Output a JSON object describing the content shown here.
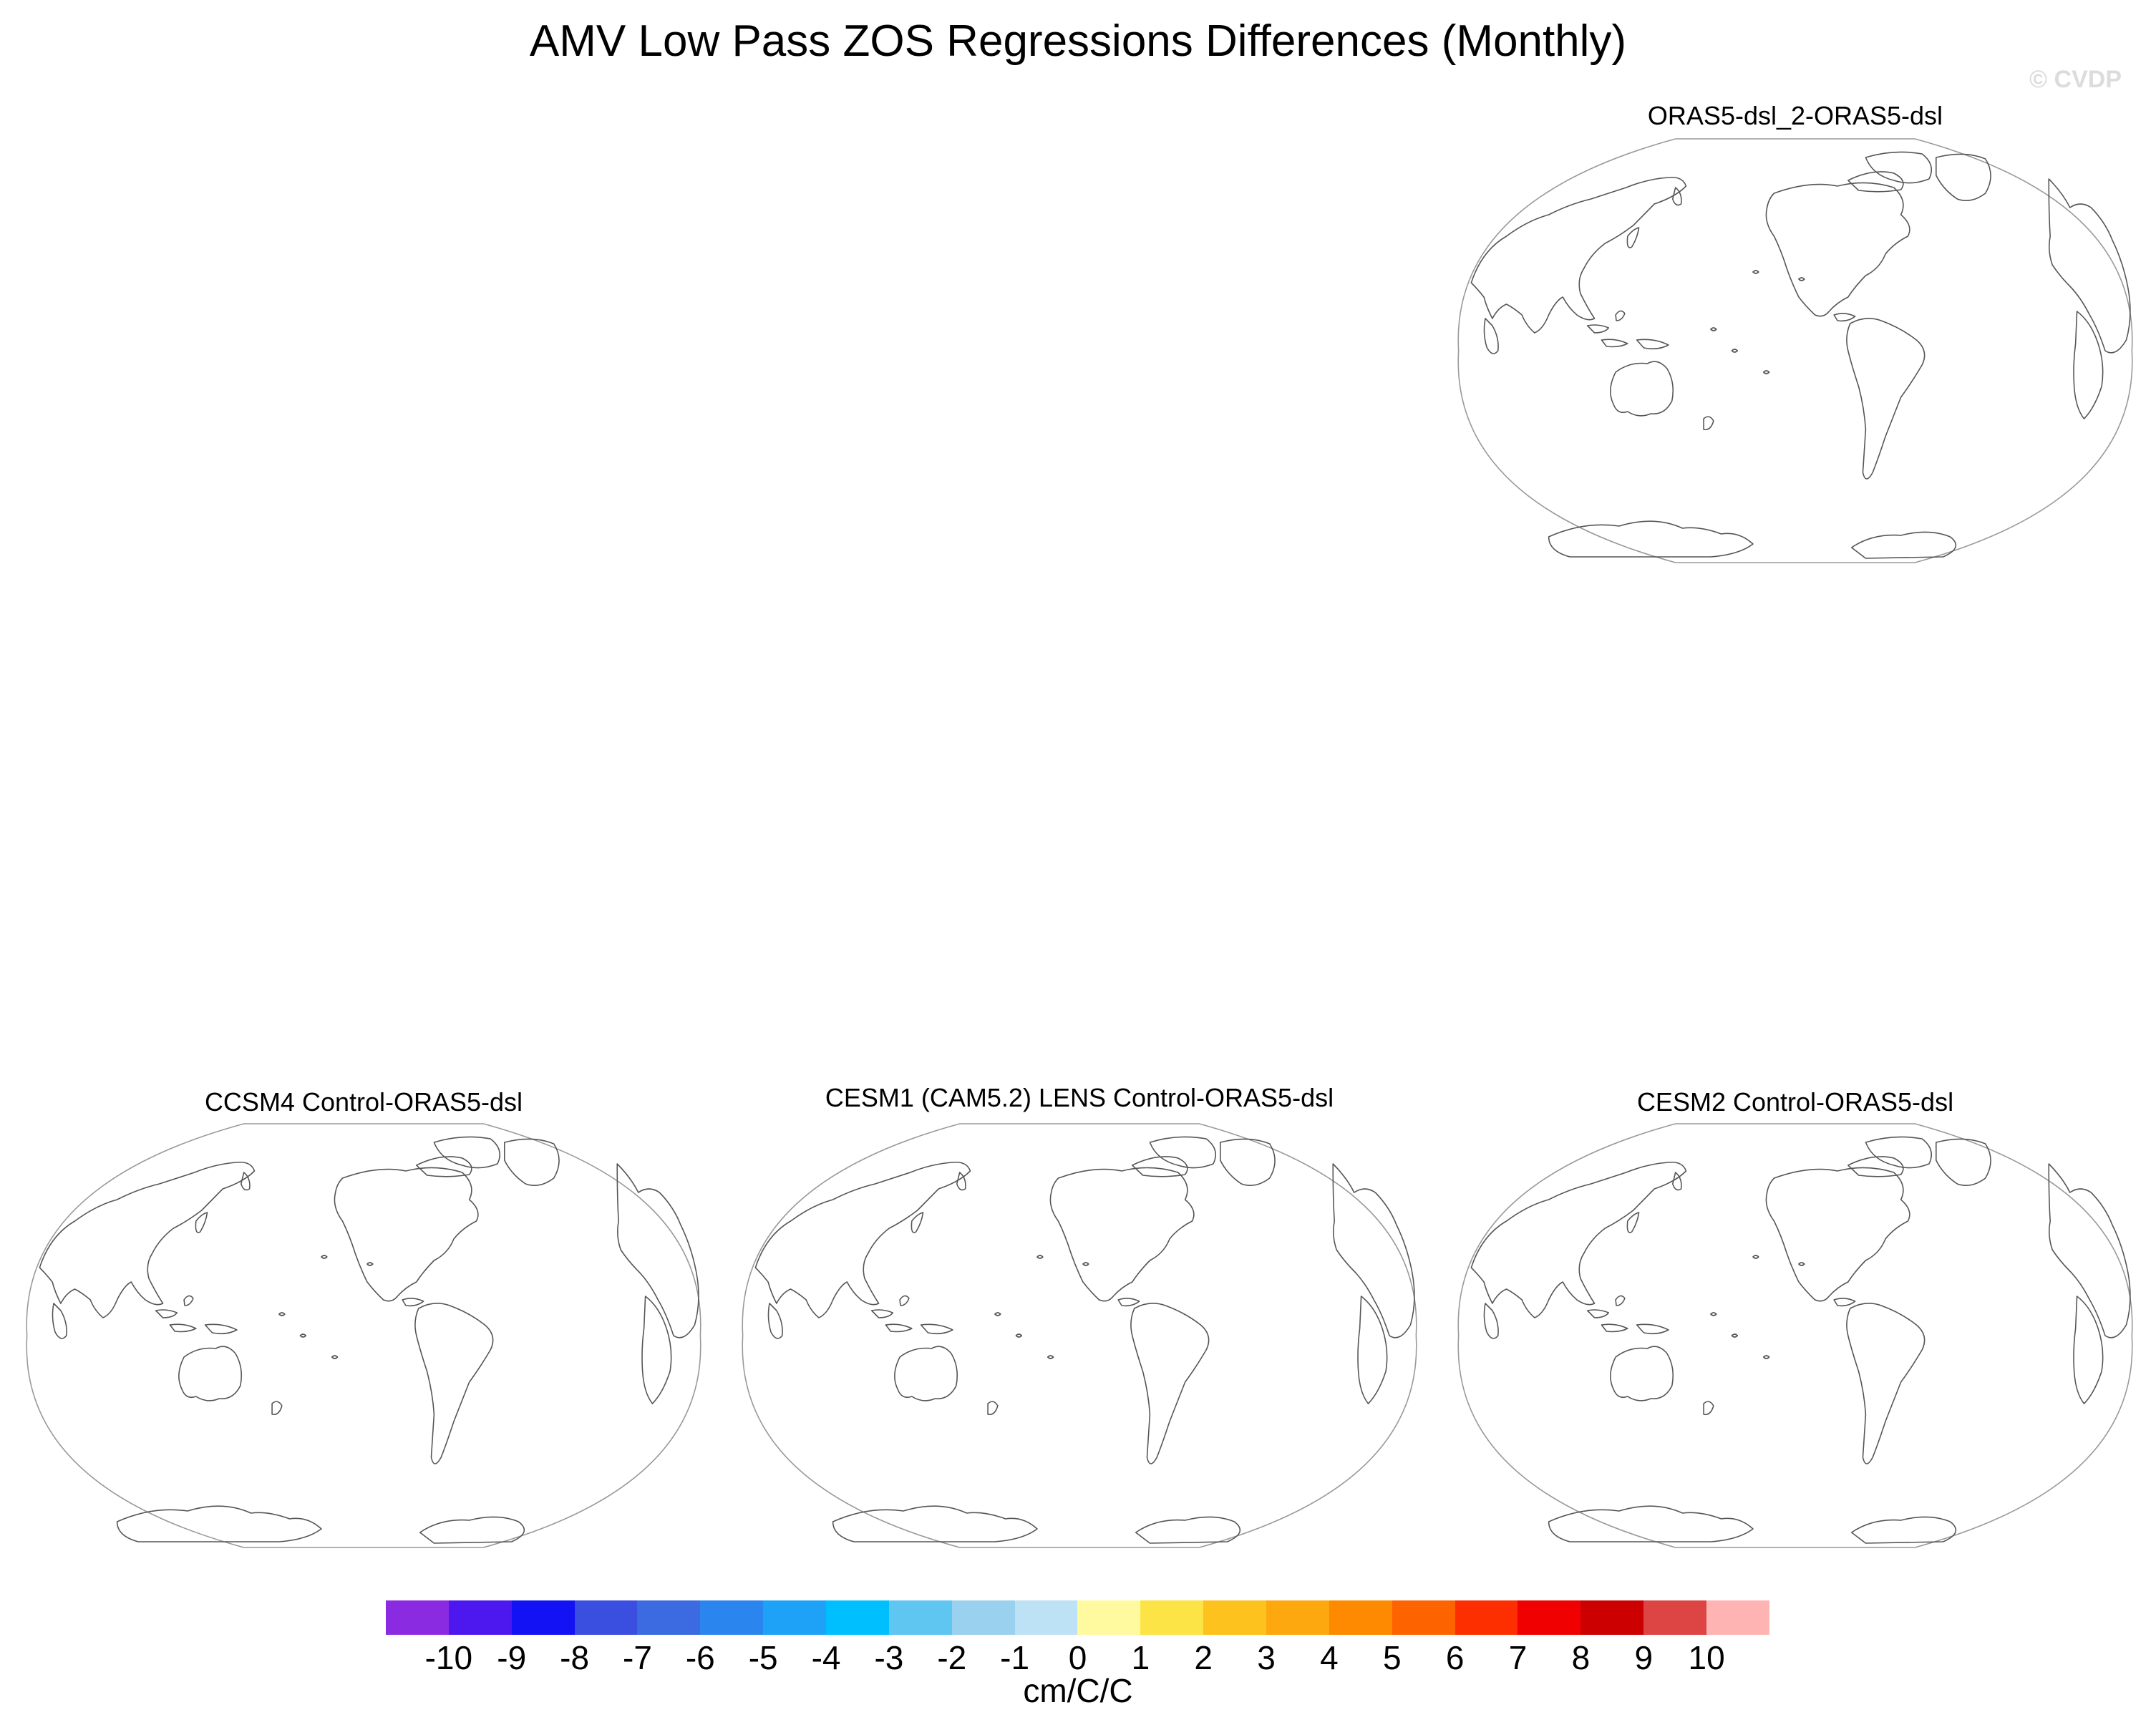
{
  "title": "AMV Low Pass ZOS Regressions Differences (Monthly)",
  "credit": "© CVDP",
  "panels": [
    {
      "title": "ORAS5-dsl_2-ORAS5-dsl"
    },
    {
      "title": "CCSM4 Control-ORAS5-dsl"
    },
    {
      "title": "CESM1 (CAM5.2) LENS Control-ORAS5-dsl"
    },
    {
      "title": "CESM2 Control-ORAS5-dsl"
    }
  ],
  "colorbar": {
    "units": "cm/C/C",
    "labels": [
      "-10",
      "-9",
      "-8",
      "-7",
      "-6",
      "-5",
      "-4",
      "-3",
      "-2",
      "-1",
      "0",
      "1",
      "2",
      "3",
      "4",
      "5",
      "6",
      "7",
      "8",
      "9",
      "10"
    ],
    "colors": [
      "#8a2be2",
      "#4d17f0",
      "#1212f5",
      "#3a4ee0",
      "#3c6ae0",
      "#2a86ee",
      "#1ea2f7",
      "#00bfff",
      "#5ec6f0",
      "#9ad1ee",
      "#bde2f5",
      "#fffaa0",
      "#fde446",
      "#fdc21e",
      "#fda80f",
      "#fd8a00",
      "#fd6400",
      "#fd2e00",
      "#f00000",
      "#cc0000",
      "#dd4444",
      "#ffb4b4"
    ]
  },
  "chart_data": {
    "type": "heatmap",
    "title": "AMV Low Pass ZOS Regressions Differences (Monthly)",
    "panels": [
      "ORAS5-dsl_2-ORAS5-dsl",
      "CCSM4 Control-ORAS5-dsl",
      "CESM1 (CAM5.2) LENS Control-ORAS5-dsl",
      "CESM2 Control-ORAS5-dsl"
    ],
    "levels": [
      -10,
      -9,
      -8,
      -7,
      -6,
      -5,
      -4,
      -3,
      -2,
      -1,
      0,
      1,
      2,
      3,
      4,
      5,
      6,
      7,
      8,
      9,
      10
    ],
    "units": "cm/C/C"
  }
}
